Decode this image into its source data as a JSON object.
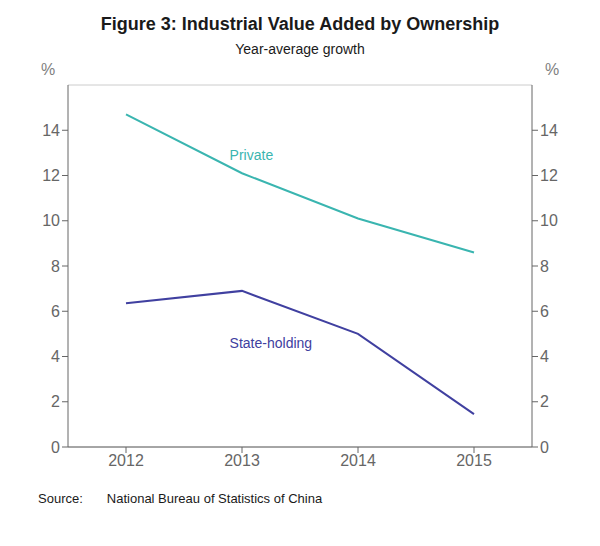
{
  "chart_data": {
    "type": "line",
    "title": "Figure 3: Industrial Value Added by Ownership",
    "subtitle": "Year-average growth",
    "source_label": "Source:",
    "source": "National Bureau of Statistics of China",
    "x": [
      2012,
      2013,
      2014,
      2015
    ],
    "series": [
      {
        "color": "#3ab5b0",
        "values": [
          14.7,
          12.1,
          10.1,
          8.6
        ]
      },
      {
        "color": "#4040a0",
        "values": [
          6.35,
          6.9,
          5.0,
          1.45
        ]
      }
    ],
    "annotations": [
      {
        "text": "Private",
        "x": 2012.85,
        "y": 12.9,
        "color": "#3ab5b0"
      },
      {
        "text": "State-holding",
        "x": 2012.85,
        "y": 4.6,
        "color": "#4040a0"
      }
    ],
    "xlim": [
      2011.5,
      2015.5
    ],
    "xticks": [
      2012,
      2013,
      2014,
      2015
    ],
    "ylim": [
      0,
      16
    ],
    "yticks": [
      0,
      2,
      4,
      6,
      8,
      10,
      12,
      14
    ],
    "y2lim": [
      0,
      16
    ],
    "y2ticks": [
      0,
      2,
      4,
      6,
      8,
      10,
      12,
      14
    ],
    "ylabel": "%",
    "y2label": "%",
    "grid": "y"
  }
}
